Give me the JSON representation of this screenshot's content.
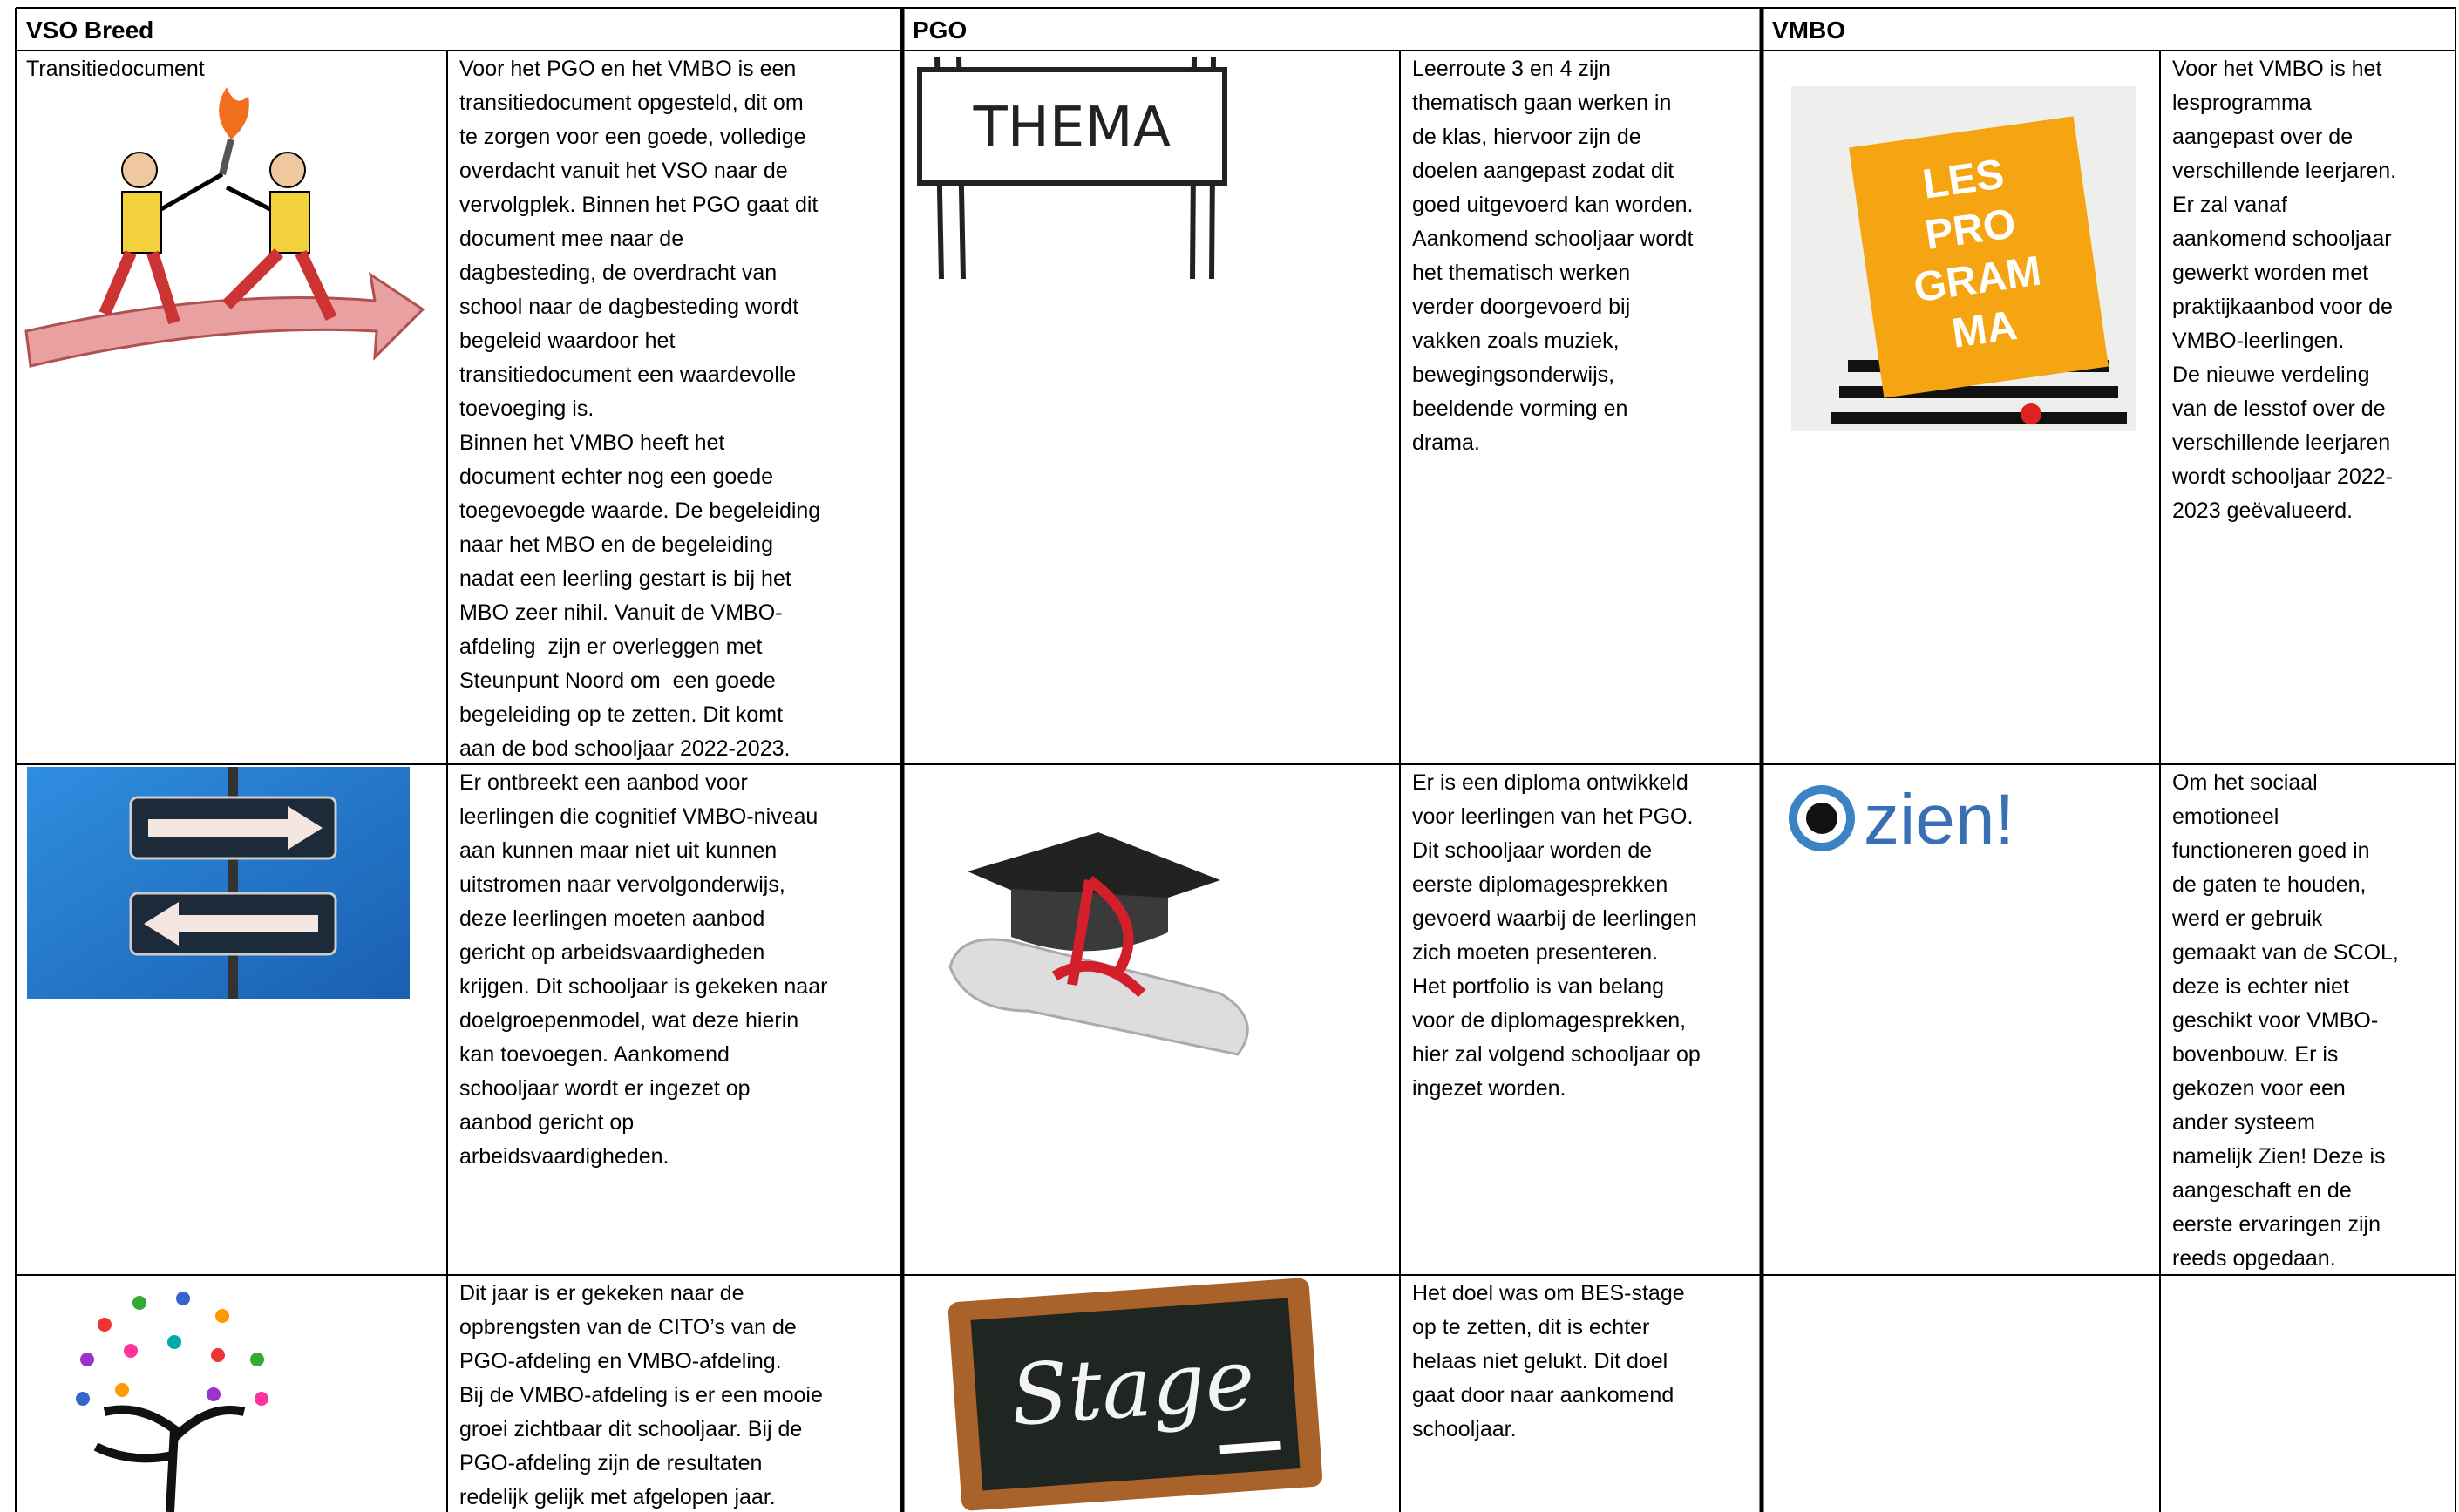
{
  "header": [
    "VSO Breed",
    "PGO",
    "VMBO"
  ],
  "rows": [
    {
      "vso": {
        "label": "Transitiedocument",
        "text": [
          "Voor het PGO en het VMBO is een",
          "transitiedocument opgesteld, dit om",
          "te zorgen voor een goede, volledige",
          "overdacht vanuit het VSO naar de",
          "vervolgplek. Binnen het PGO gaat dit",
          "document mee naar de",
          "dagbesteding, de overdracht van",
          "school naar de dagbesteding wordt",
          "begeleid waardoor het",
          "transitiedocument een waardevolle",
          "toevoeging is.",
          "Binnen het VMBO heeft het",
          "document echter nog een goede",
          "toegevoegde waarde. De begeleiding",
          "naar het MBO en de begeleiding",
          "nadat een leerling gestart is bij het",
          "MBO zeer nihil. Vanuit de VMBO-",
          "afdeling  zijn er overleggen met",
          "Steunpunt Noord om  een goede",
          "begeleiding op te zetten. Dit komt",
          "aan de bod schooljaar 2022-2023."
        ]
      },
      "pgo": {
        "image_text": "THEMA",
        "text": [
          "Leerroute 3 en 4 zijn",
          "thematisch gaan werken in",
          "de klas, hiervoor zijn de",
          "doelen aangepast zodat dit",
          "goed uitgevoerd kan worden.",
          "Aankomend schooljaar wordt",
          "het thematisch werken",
          "verder doorgevoerd bij",
          "vakken zoals muziek,",
          "bewegingsonderwijs,",
          "beeldende vorming en",
          "drama."
        ]
      },
      "vmbo": {
        "image_text": [
          "LES",
          "PRO",
          "GRAM",
          "MA"
        ],
        "text": [
          "Voor het VMBO is het",
          "lesprogramma",
          "aangepast over de",
          "verschillende leerjaren.",
          "Er zal vanaf",
          "aankomend schooljaar",
          "gewerkt worden met",
          "praktijkaanbod voor de",
          "VMBO-leerlingen.",
          "De nieuwe verdeling",
          "van de lesstof over de",
          "verschillende leerjaren",
          "wordt schooljaar 2022-",
          "2023 geëvalueerd."
        ]
      }
    },
    {
      "vso": {
        "text": [
          "Er ontbreekt een aanbod voor",
          "leerlingen die cognitief VMBO-niveau",
          "aan kunnen maar niet uit kunnen",
          "uitstromen naar vervolgonderwijs,",
          "deze leerlingen moeten aanbod",
          "gericht op arbeidsvaardigheden",
          "krijgen. Dit schooljaar is gekeken naar",
          "doelgroepenmodel, wat deze hierin",
          "kan toevoegen. Aankomend",
          "schooljaar wordt er ingezet op",
          "aanbod gericht op",
          "arbeidsvaardigheden."
        ]
      },
      "pgo": {
        "text": [
          "Er is een diploma ontwikkeld",
          "voor leerlingen van het PGO.",
          "Dit schooljaar worden de",
          "eerste diplomagesprekken",
          "gevoerd waarbij de leerlingen",
          "zich moeten presenteren.",
          "Het portfolio is van belang",
          "voor de diplomagesprekken,",
          "hier zal volgend schooljaar op",
          "ingezet worden."
        ]
      },
      "vmbo": {
        "image_text": "zien!",
        "text": [
          "Om het sociaal",
          "emotioneel",
          "functioneren goed in",
          "de gaten te houden,",
          "werd er gebruik",
          "gemaakt van de SCOL,",
          "deze is echter niet",
          "geschikt voor VMBO-",
          "bovenbouw. Er is",
          "gekozen voor een",
          "ander systeem",
          "namelijk Zien! Deze is",
          "aangeschaft en de",
          "eerste ervaringen zijn",
          "reeds opgedaan."
        ]
      }
    },
    {
      "vso": {
        "text": [
          "Dit jaar is er gekeken naar de",
          "opbrengsten van de CITO’s van de",
          "PGO-afdeling en VMBO-afdeling.",
          "Bij de VMBO-afdeling is er een mooie",
          "groei zichtbaar dit schooljaar. Bij de",
          "PGO-afdeling zijn de resultaten",
          "redelijk gelijk met afgelopen jaar."
        ]
      },
      "pgo": {
        "image_text": "Stage",
        "text": [
          "Het doel was om BES-stage",
          "op te zetten, dit is echter",
          "helaas niet gelukt. Dit doel",
          "gaat door naar aankomend",
          "schooljaar."
        ]
      }
    }
  ]
}
